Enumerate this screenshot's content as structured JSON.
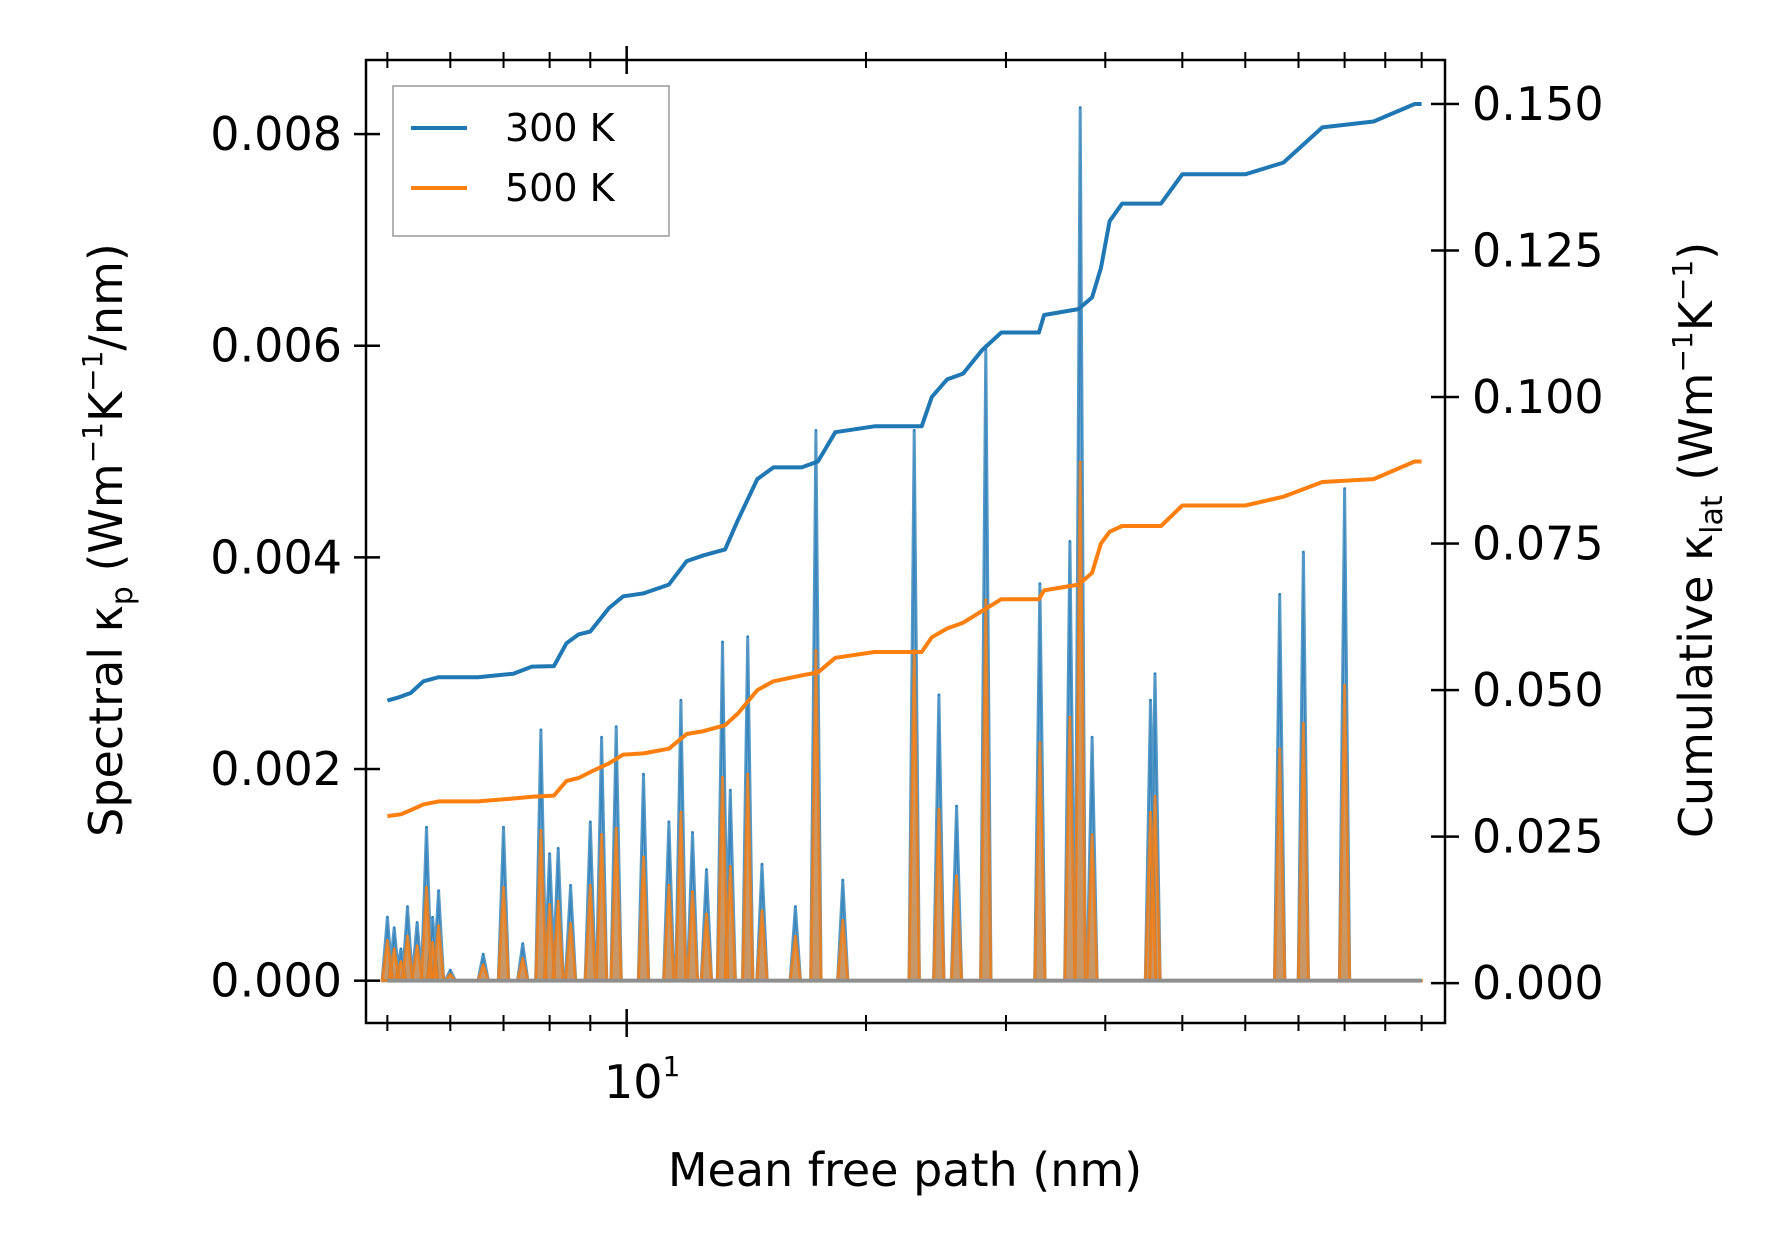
{
  "chart_data": {
    "type": "line",
    "title": "",
    "xlabel": "Mean free path (nm)",
    "xscale": "log",
    "xlim": [
      4.7,
      107
    ],
    "xticks_major": [
      10
    ],
    "x_major_tick_label": "10",
    "x_major_tick_exponent": "1",
    "ylabel_left": {
      "main": "Spectral κ",
      "sub": "p",
      "units_open": " (Wm",
      "exp1": "−1",
      "mid": "K",
      "exp2": "−1",
      "units_close": "/nm)"
    },
    "ylim_left": [
      -0.0004,
      0.0087
    ],
    "yticks_left": [
      0.0,
      0.002,
      0.004,
      0.006,
      0.008
    ],
    "ytick_labels_left": [
      "0.000",
      "0.002",
      "0.004",
      "0.006",
      "0.008"
    ],
    "ylabel_right": {
      "main": "Cumulative κ",
      "sub": "lat",
      "units_open": " (Wm",
      "exp1": "−1",
      "mid": "K",
      "exp2": "−1",
      "units_close": ")"
    },
    "ylim_right": [
      -0.0068,
      0.1575
    ],
    "yticks_right": [
      0.0,
      0.025,
      0.05,
      0.075,
      0.1,
      0.125,
      0.15
    ],
    "ytick_labels_right": [
      "0.000",
      "0.025",
      "0.050",
      "0.075",
      "0.100",
      "0.125",
      "0.150"
    ],
    "legend_position": "top-left",
    "series": [
      {
        "name": "300 K",
        "color": "#1f77b4",
        "cumulative": [
          [
            5.0,
            0.0482
          ],
          [
            5.15,
            0.0487
          ],
          [
            5.35,
            0.0495
          ],
          [
            5.55,
            0.0515
          ],
          [
            5.8,
            0.0522
          ],
          [
            6.5,
            0.0522
          ],
          [
            7.2,
            0.0528
          ],
          [
            7.6,
            0.054
          ],
          [
            8.1,
            0.0541
          ],
          [
            8.4,
            0.058
          ],
          [
            8.7,
            0.0595
          ],
          [
            9.0,
            0.06
          ],
          [
            9.5,
            0.064
          ],
          [
            9.9,
            0.066
          ],
          [
            10.5,
            0.0665
          ],
          [
            11.3,
            0.068
          ],
          [
            11.9,
            0.072
          ],
          [
            12.5,
            0.073
          ],
          [
            13.3,
            0.074
          ],
          [
            13.8,
            0.079
          ],
          [
            14.6,
            0.086
          ],
          [
            15.3,
            0.088
          ],
          [
            16.6,
            0.088
          ],
          [
            17.4,
            0.089
          ],
          [
            18.3,
            0.094
          ],
          [
            20.5,
            0.095
          ],
          [
            23.5,
            0.095
          ],
          [
            24.2,
            0.1
          ],
          [
            25.3,
            0.103
          ],
          [
            26.5,
            0.104
          ],
          [
            28.0,
            0.108
          ],
          [
            29.6,
            0.111
          ],
          [
            33.0,
            0.111
          ],
          [
            33.5,
            0.114
          ],
          [
            37.0,
            0.115
          ],
          [
            38.5,
            0.117
          ],
          [
            39.5,
            0.122
          ],
          [
            40.5,
            0.13
          ],
          [
            42.0,
            0.133
          ],
          [
            47.0,
            0.133
          ],
          [
            50.0,
            0.138
          ],
          [
            60.0,
            0.138
          ],
          [
            67.0,
            0.14
          ],
          [
            75.0,
            0.146
          ],
          [
            87.0,
            0.147
          ],
          [
            98.0,
            0.15
          ],
          [
            100.0,
            0.15
          ]
        ],
        "spectral_peaks": [
          [
            5.0,
            0.0006
          ],
          [
            5.1,
            0.0005
          ],
          [
            5.2,
            0.0003
          ],
          [
            5.3,
            0.0007
          ],
          [
            5.45,
            0.00055
          ],
          [
            5.6,
            0.00145
          ],
          [
            5.7,
            0.0006
          ],
          [
            5.8,
            0.00085
          ],
          [
            6.0,
            0.0001
          ],
          [
            6.6,
            0.00025
          ],
          [
            7.0,
            0.00145
          ],
          [
            7.4,
            0.00035
          ],
          [
            7.8,
            0.00237
          ],
          [
            8.0,
            0.0012
          ],
          [
            8.2,
            0.00125
          ],
          [
            8.5,
            0.0009
          ],
          [
            9.0,
            0.0015
          ],
          [
            9.3,
            0.0023
          ],
          [
            9.7,
            0.0024
          ],
          [
            10.5,
            0.00195
          ],
          [
            11.3,
            0.0015
          ],
          [
            11.7,
            0.00265
          ],
          [
            12.1,
            0.0014
          ],
          [
            12.6,
            0.00105
          ],
          [
            13.2,
            0.0032
          ],
          [
            13.5,
            0.0018
          ],
          [
            14.2,
            0.00325
          ],
          [
            14.8,
            0.0011
          ],
          [
            16.3,
            0.0007
          ],
          [
            17.3,
            0.0052
          ],
          [
            18.7,
            0.00095
          ],
          [
            23.0,
            0.0052
          ],
          [
            24.7,
            0.0027
          ],
          [
            26.0,
            0.00165
          ],
          [
            28.3,
            0.006
          ],
          [
            33.1,
            0.00375
          ],
          [
            36.1,
            0.00415
          ],
          [
            37.2,
            0.00825
          ],
          [
            38.5,
            0.0023
          ],
          [
            45.6,
            0.00265
          ],
          [
            46.2,
            0.0029
          ],
          [
            66.3,
            0.00365
          ],
          [
            71.0,
            0.00405
          ],
          [
            80.0,
            0.00465
          ]
        ]
      },
      {
        "name": "500 K",
        "color": "#ff7f0e",
        "cumulative": [
          [
            5.0,
            0.0285
          ],
          [
            5.2,
            0.0288
          ],
          [
            5.35,
            0.0295
          ],
          [
            5.55,
            0.0305
          ],
          [
            5.8,
            0.031
          ],
          [
            6.5,
            0.031
          ],
          [
            7.2,
            0.0315
          ],
          [
            7.6,
            0.0318
          ],
          [
            8.1,
            0.032
          ],
          [
            8.4,
            0.0345
          ],
          [
            8.7,
            0.035
          ],
          [
            9.0,
            0.036
          ],
          [
            9.5,
            0.0375
          ],
          [
            9.9,
            0.039
          ],
          [
            10.5,
            0.0392
          ],
          [
            11.3,
            0.04
          ],
          [
            11.9,
            0.0425
          ],
          [
            12.5,
            0.043
          ],
          [
            13.3,
            0.044
          ],
          [
            13.8,
            0.046
          ],
          [
            14.6,
            0.05
          ],
          [
            15.3,
            0.0515
          ],
          [
            16.6,
            0.0525
          ],
          [
            17.4,
            0.053
          ],
          [
            18.3,
            0.0555
          ],
          [
            20.5,
            0.0565
          ],
          [
            23.5,
            0.0565
          ],
          [
            24.2,
            0.059
          ],
          [
            25.3,
            0.0605
          ],
          [
            26.5,
            0.0615
          ],
          [
            28.0,
            0.0635
          ],
          [
            29.6,
            0.0655
          ],
          [
            33.0,
            0.0655
          ],
          [
            33.5,
            0.067
          ],
          [
            37.0,
            0.068
          ],
          [
            38.5,
            0.07
          ],
          [
            39.5,
            0.075
          ],
          [
            40.5,
            0.077
          ],
          [
            42.0,
            0.078
          ],
          [
            47.0,
            0.078
          ],
          [
            50.0,
            0.0815
          ],
          [
            60.0,
            0.0815
          ],
          [
            67.0,
            0.083
          ],
          [
            75.0,
            0.0855
          ],
          [
            87.0,
            0.086
          ],
          [
            98.0,
            0.089
          ],
          [
            100.0,
            0.089
          ]
        ],
        "spectral_peaks": [
          [
            5.0,
            0.00038
          ],
          [
            5.1,
            0.0003
          ],
          [
            5.2,
            0.00018
          ],
          [
            5.3,
            0.00042
          ],
          [
            5.45,
            0.00033
          ],
          [
            5.6,
            0.00088
          ],
          [
            5.7,
            0.00036
          ],
          [
            5.8,
            0.00052
          ],
          [
            6.0,
            6e-05
          ],
          [
            6.6,
            0.00015
          ],
          [
            7.0,
            0.00088
          ],
          [
            7.4,
            0.00021
          ],
          [
            7.8,
            0.00142
          ],
          [
            8.0,
            0.00072
          ],
          [
            8.2,
            0.00075
          ],
          [
            8.5,
            0.00054
          ],
          [
            9.0,
            0.0009
          ],
          [
            9.3,
            0.00138
          ],
          [
            9.7,
            0.00144
          ],
          [
            10.5,
            0.00117
          ],
          [
            11.3,
            0.0009
          ],
          [
            11.7,
            0.00159
          ],
          [
            12.1,
            0.00084
          ],
          [
            12.6,
            0.00063
          ],
          [
            13.2,
            0.00192
          ],
          [
            13.5,
            0.00108
          ],
          [
            14.2,
            0.00195
          ],
          [
            14.8,
            0.00066
          ],
          [
            16.3,
            0.00042
          ],
          [
            17.3,
            0.00312
          ],
          [
            18.7,
            0.00057
          ],
          [
            23.0,
            0.00312
          ],
          [
            24.7,
            0.00162
          ],
          [
            26.0,
            0.00099
          ],
          [
            28.3,
            0.0036
          ],
          [
            33.1,
            0.00225
          ],
          [
            36.1,
            0.00249
          ],
          [
            37.2,
            0.0049
          ],
          [
            38.5,
            0.00138
          ],
          [
            45.6,
            0.00159
          ],
          [
            46.2,
            0.00174
          ],
          [
            66.3,
            0.00219
          ],
          [
            71.0,
            0.00243
          ],
          [
            80.0,
            0.00279
          ]
        ]
      }
    ]
  }
}
